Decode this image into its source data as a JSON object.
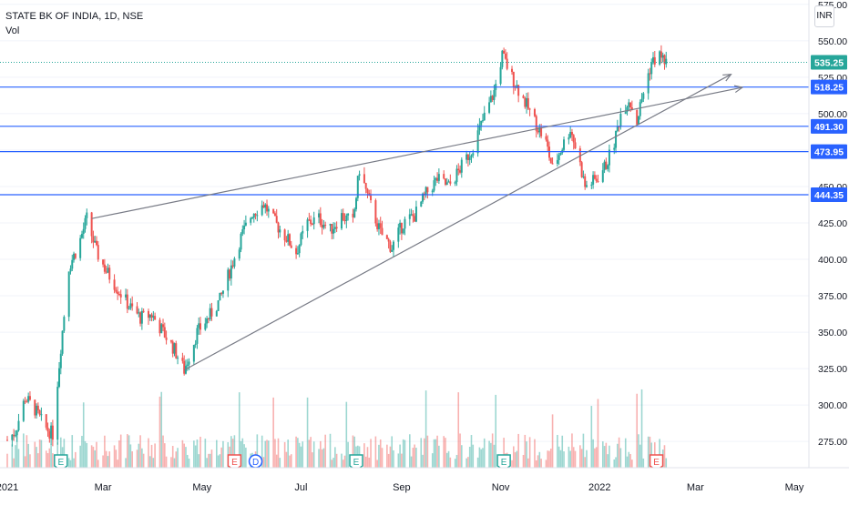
{
  "header": {
    "symbol": "STATE BK OF INDIA, 1D, NSE",
    "indicator": "Vol"
  },
  "currency": "INR",
  "chart_data": {
    "type": "candlestick",
    "ylim": [
      257,
      578
    ],
    "y_ticks": [
      275,
      300,
      325,
      350,
      375,
      400,
      425,
      450,
      475,
      500,
      525,
      550,
      575
    ],
    "y_tick_labels": [
      "275.00",
      "300.00",
      "325.00",
      "350.00",
      "375.00",
      "400.00",
      "425.00",
      "450.00",
      "475.00",
      "500.00",
      "525.00",
      "550.00",
      "575.00"
    ],
    "x_labels": [
      "2021",
      "Mar",
      "May",
      "Jul",
      "Sep",
      "Nov",
      "2022",
      "Mar",
      "May"
    ],
    "last_price": {
      "value": 535.25,
      "label": "535.25",
      "color": "#26a69a"
    },
    "horizontal_levels": [
      {
        "value": 518.25,
        "label": "518.25"
      },
      {
        "value": 491.3,
        "label": "491.30"
      },
      {
        "value": 473.95,
        "label": "473.95"
      },
      {
        "value": 444.35,
        "label": "444.35"
      }
    ],
    "trendlines": [
      {
        "from": [
          "2021-02-22",
          428
        ],
        "to": [
          "2022-03-30",
          518
        ]
      },
      {
        "from": [
          "2021-04-20",
          324
        ],
        "to": [
          "2022-03-23",
          527
        ]
      }
    ],
    "events": [
      {
        "date": "2021-02-03",
        "label": "E",
        "kind": "earnings-beat"
      },
      {
        "date": "2021-05-21",
        "label": "E",
        "kind": "earnings-miss"
      },
      {
        "date": "2021-06-03",
        "label": "D",
        "kind": "dividend"
      },
      {
        "date": "2021-08-04",
        "label": "E",
        "kind": "earnings-beat"
      },
      {
        "date": "2021-11-03",
        "label": "E",
        "kind": "earnings-beat"
      },
      {
        "date": "2022-02-05",
        "label": "E",
        "kind": "earnings-miss"
      }
    ],
    "price_path": [
      [
        "2021-01-01",
        276
      ],
      [
        "2021-01-06",
        282
      ],
      [
        "2021-01-12",
        305
      ],
      [
        "2021-01-18",
        297
      ],
      [
        "2021-01-24",
        285
      ],
      [
        "2021-01-29",
        280
      ],
      [
        "2021-02-03",
        340
      ],
      [
        "2021-02-08",
        395
      ],
      [
        "2021-02-14",
        410
      ],
      [
        "2021-02-19",
        428
      ],
      [
        "2021-02-25",
        405
      ],
      [
        "2021-03-03",
        392
      ],
      [
        "2021-03-10",
        380
      ],
      [
        "2021-03-17",
        368
      ],
      [
        "2021-03-24",
        360
      ],
      [
        "2021-03-31",
        362
      ],
      [
        "2021-04-07",
        350
      ],
      [
        "2021-04-14",
        338
      ],
      [
        "2021-04-20",
        324
      ],
      [
        "2021-04-28",
        350
      ],
      [
        "2021-05-05",
        360
      ],
      [
        "2021-05-12",
        372
      ],
      [
        "2021-05-19",
        395
      ],
      [
        "2021-05-25",
        415
      ],
      [
        "2021-06-01",
        432
      ],
      [
        "2021-06-08",
        438
      ],
      [
        "2021-06-15",
        425
      ],
      [
        "2021-06-22",
        415
      ],
      [
        "2021-06-28",
        405
      ],
      [
        "2021-07-05",
        425
      ],
      [
        "2021-07-12",
        428
      ],
      [
        "2021-07-19",
        420
      ],
      [
        "2021-07-26",
        430
      ],
      [
        "2021-08-02",
        425
      ],
      [
        "2021-08-06",
        462
      ],
      [
        "2021-08-12",
        440
      ],
      [
        "2021-08-19",
        418
      ],
      [
        "2021-08-26",
        408
      ],
      [
        "2021-09-02",
        425
      ],
      [
        "2021-09-09",
        430
      ],
      [
        "2021-09-16",
        445
      ],
      [
        "2021-09-23",
        455
      ],
      [
        "2021-09-30",
        450
      ],
      [
        "2021-10-07",
        462
      ],
      [
        "2021-10-14",
        475
      ],
      [
        "2021-10-21",
        495
      ],
      [
        "2021-10-28",
        515
      ],
      [
        "2021-11-02",
        540
      ],
      [
        "2021-11-08",
        525
      ],
      [
        "2021-11-15",
        510
      ],
      [
        "2021-11-22",
        495
      ],
      [
        "2021-11-29",
        480
      ],
      [
        "2021-12-03",
        462
      ],
      [
        "2021-12-08",
        475
      ],
      [
        "2021-12-14",
        490
      ],
      [
        "2021-12-20",
        465
      ],
      [
        "2021-12-23",
        450
      ],
      [
        "2021-12-30",
        455
      ],
      [
        "2022-01-05",
        465
      ],
      [
        "2022-01-10",
        480
      ],
      [
        "2022-01-14",
        500
      ],
      [
        "2022-01-19",
        510
      ],
      [
        "2022-01-24",
        495
      ],
      [
        "2022-01-28",
        515
      ],
      [
        "2022-02-02",
        535
      ],
      [
        "2022-02-07",
        540
      ],
      [
        "2022-02-11",
        535.25
      ]
    ]
  }
}
